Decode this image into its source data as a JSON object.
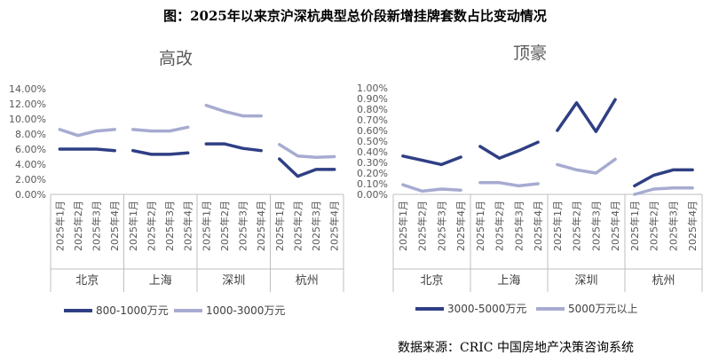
{
  "figure_title": "图：2025年以来京沪深杭典型总价段新增挂牌套数占比变动情况",
  "source": "数据来源：CRIC 中国房地产决策咨询系统",
  "colors": {
    "dark": "#2f3f84",
    "light": "#a7abd1",
    "axis": "#bfbfbf",
    "text": "#595959"
  },
  "chart_data": [
    {
      "type": "line",
      "title": "高改",
      "groups": [
        "北京",
        "上海",
        "深圳",
        "杭州"
      ],
      "categories": [
        "2025年1月",
        "2025年2月",
        "2025年3月",
        "2025年4月"
      ],
      "ylim": [
        0,
        14
      ],
      "yticks": [
        "0.00%",
        "2.00%",
        "4.00%",
        "6.00%",
        "8.00%",
        "10.00%",
        "12.00%",
        "14.00%"
      ],
      "series": [
        {
          "name": "800-1000万元",
          "color": "dark",
          "values": [
            [
              6.0,
              6.0,
              6.0,
              5.8
            ],
            [
              5.8,
              5.3,
              5.3,
              5.5
            ],
            [
              6.7,
              6.7,
              6.1,
              5.8
            ],
            [
              4.7,
              2.4,
              3.3,
              3.3
            ]
          ]
        },
        {
          "name": "1000-3000万元",
          "color": "light",
          "values": [
            [
              8.6,
              7.8,
              8.4,
              8.6
            ],
            [
              8.6,
              8.4,
              8.4,
              8.9
            ],
            [
              11.8,
              11.0,
              10.4,
              10.4
            ],
            [
              6.6,
              5.1,
              4.9,
              5.0
            ]
          ]
        }
      ]
    },
    {
      "type": "line",
      "title": "顶豪",
      "groups": [
        "北京",
        "上海",
        "深圳",
        "杭州"
      ],
      "categories": [
        "2025年1月",
        "2025年2月",
        "2025年3月",
        "2025年4月"
      ],
      "ylim": [
        0,
        1
      ],
      "yticks": [
        "0.00%",
        "0.10%",
        "0.20%",
        "0.30%",
        "0.40%",
        "0.50%",
        "0.60%",
        "0.70%",
        "0.80%",
        "0.90%",
        "1.00%"
      ],
      "series": [
        {
          "name": "3000-5000万元",
          "color": "dark",
          "values": [
            [
              0.36,
              0.32,
              0.28,
              0.35
            ],
            [
              0.45,
              0.34,
              0.41,
              0.49
            ],
            [
              0.6,
              0.86,
              0.59,
              0.89
            ],
            [
              0.08,
              0.18,
              0.23,
              0.23
            ]
          ]
        },
        {
          "name": "5000万元以上",
          "color": "light",
          "values": [
            [
              0.09,
              0.03,
              0.05,
              0.04
            ],
            [
              0.11,
              0.11,
              0.08,
              0.1
            ],
            [
              0.28,
              0.23,
              0.2,
              0.33
            ],
            [
              0.0,
              0.05,
              0.06,
              0.06
            ]
          ]
        }
      ]
    }
  ]
}
